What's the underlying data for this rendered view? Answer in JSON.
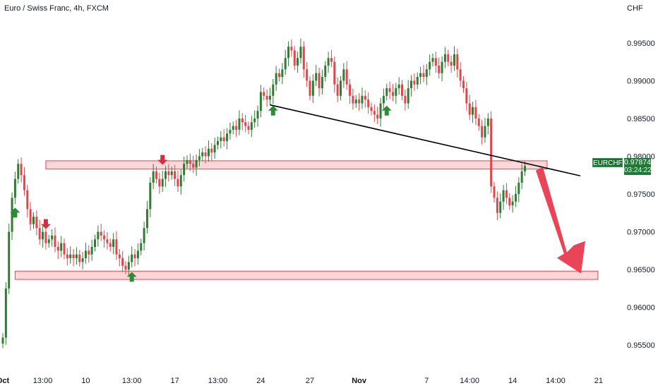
{
  "header": {
    "title": "Euro / Swiss Franc, 4h, FXCM",
    "currency": "CHF"
  },
  "price_tag": {
    "symbol": "EURCHF",
    "last_price": "0.97874",
    "countdown": "03:24:22"
  },
  "colors": {
    "up": "#2e7d32",
    "down": "#e0474c",
    "zone_fill": "#f9c9cd",
    "zone_stroke": "#e0474c",
    "trendline": "#000000",
    "arrow": "#e8344a",
    "marker_up": "#2e8b3a",
    "marker_down": "#d32f3f",
    "tag_bg": "#1e7a36"
  },
  "chart_data": {
    "type": "candlestick",
    "title": "Euro / Swiss Franc, 4h, FXCM",
    "y_unit": "CHF",
    "ylim": [
      0.9525,
      0.999
    ],
    "yticks": [
      "0.99500",
      "0.99000",
      "0.98500",
      "0.98000",
      "0.97500",
      "0.97000",
      "0.96500",
      "0.96000",
      "0.95500"
    ],
    "xticks": [
      {
        "label": "Oct",
        "bold": true,
        "idx": 0
      },
      {
        "label": "13:00",
        "bold": false,
        "idx": 13
      },
      {
        "label": "10",
        "bold": false,
        "idx": 27
      },
      {
        "label": "13:00",
        "bold": false,
        "idx": 42
      },
      {
        "label": "17",
        "bold": false,
        "idx": 56
      },
      {
        "label": "13:00",
        "bold": false,
        "idx": 70
      },
      {
        "label": "24",
        "bold": false,
        "idx": 84
      },
      {
        "label": "27",
        "bold": false,
        "idx": 100
      },
      {
        "label": "Nov",
        "bold": true,
        "idx": 116
      },
      {
        "label": "7",
        "bold": false,
        "idx": 138
      },
      {
        "label": "14:00",
        "bold": false,
        "idx": 152
      },
      {
        "label": "14",
        "bold": false,
        "idx": 166
      },
      {
        "label": "14:00",
        "bold": false,
        "idx": 180
      },
      {
        "label": "21",
        "bold": false,
        "idx": 194
      }
    ],
    "close": [
      0.956,
      0.9625,
      0.97,
      0.9745,
      0.977,
      0.979,
      0.9775,
      0.9755,
      0.973,
      0.971,
      0.972,
      0.9705,
      0.969,
      0.97,
      0.9685,
      0.969,
      0.9695,
      0.968,
      0.9675,
      0.9685,
      0.967,
      0.9665,
      0.967,
      0.9665,
      0.967,
      0.966,
      0.9665,
      0.9675,
      0.967,
      0.968,
      0.969,
      0.97,
      0.9695,
      0.969,
      0.9685,
      0.968,
      0.969,
      0.967,
      0.9665,
      0.9655,
      0.965,
      0.966,
      0.967,
      0.9665,
      0.9675,
      0.9685,
      0.9705,
      0.973,
      0.9765,
      0.978,
      0.977,
      0.976,
      0.977,
      0.978,
      0.9775,
      0.978,
      0.977,
      0.976,
      0.9775,
      0.979,
      0.9795,
      0.979,
      0.9785,
      0.9795,
      0.98,
      0.9805,
      0.98,
      0.981,
      0.9805,
      0.9815,
      0.982,
      0.9825,
      0.982,
      0.983,
      0.9835,
      0.984,
      0.9835,
      0.985,
      0.9845,
      0.984,
      0.9835,
      0.9845,
      0.985,
      0.986,
      0.9885,
      0.988,
      0.9875,
      0.988,
      0.9895,
      0.991,
      0.9905,
      0.9915,
      0.993,
      0.9945,
      0.994,
      0.992,
      0.993,
      0.9945,
      0.9915,
      0.99,
      0.988,
      0.99,
      0.991,
      0.989,
      0.9905,
      0.992,
      0.993,
      0.9925,
      0.9895,
      0.988,
      0.99,
      0.9915,
      0.9895,
      0.988,
      0.987,
      0.9875,
      0.987,
      0.988,
      0.9875,
      0.9865,
      0.986,
      0.9855,
      0.985,
      0.987,
      0.988,
      0.989,
      0.9885,
      0.988,
      0.989,
      0.9895,
      0.988,
      0.987,
      0.989,
      0.99,
      0.9895,
      0.9905,
      0.991,
      0.9905,
      0.9915,
      0.9925,
      0.993,
      0.992,
      0.991,
      0.9925,
      0.9935,
      0.9925,
      0.992,
      0.9935,
      0.9915,
      0.99,
      0.989,
      0.987,
      0.9855,
      0.9865,
      0.985,
      0.984,
      0.9825,
      0.984,
      0.985,
      0.976,
      0.9745,
      0.9725,
      0.974,
      0.9755,
      0.9745,
      0.9735,
      0.974,
      0.975,
      0.9765,
      0.978,
      0.9787
    ],
    "markers": [
      {
        "type": "down",
        "idx": 14
      },
      {
        "type": "down",
        "idx": 52
      },
      {
        "type": "up",
        "idx": 4
      },
      {
        "type": "up",
        "idx": 42
      },
      {
        "type": "up",
        "idx": 88
      },
      {
        "type": "up",
        "idx": 125
      }
    ],
    "zones": [
      {
        "name": "resistance",
        "from": 0.9783,
        "to": 0.9794
      },
      {
        "name": "support",
        "from": 0.9637,
        "to": 0.9648
      }
    ],
    "trendline": [
      {
        "idx": 87,
        "value": 0.9868
      },
      {
        "idx": 186,
        "value": 0.9776
      }
    ],
    "projection": {
      "from": {
        "idx": 174,
        "value": 0.9783
      },
      "to": {
        "idx": 186,
        "value": 0.9643
      }
    }
  }
}
